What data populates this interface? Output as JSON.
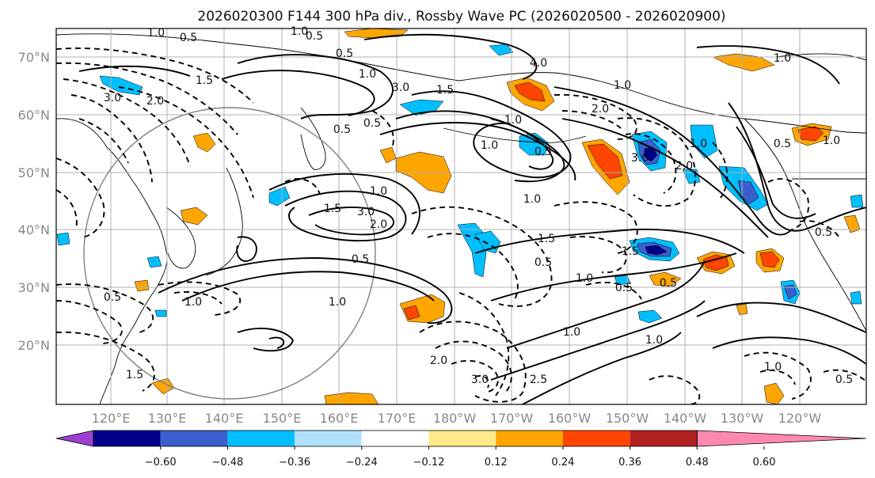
{
  "title": "2026020300 F144 300 hPa div., Rossby Wave PC (2026020500 - 2026020900)",
  "map": {
    "lat_labels": [
      "70°N",
      "60°N",
      "50°N",
      "40°N",
      "30°N",
      "20°N"
    ],
    "lon_labels": [
      "120°E",
      "130°E",
      "140°E",
      "150°E",
      "160°E",
      "170°E",
      "180°W",
      "170°W",
      "160°W",
      "150°W",
      "140°W",
      "130°W",
      "120°W"
    ],
    "coast_color": "#000000",
    "grid_color": "#b0b0b0"
  },
  "colorbar": {
    "colors": [
      "#9b3fd0",
      "#00008b",
      "#3a5fcd",
      "#00bfff",
      "#b0e2ff",
      "#ffffff",
      "#ffe98a",
      "#ffa500",
      "#ff4500",
      "#b22222",
      "#ff88b0"
    ],
    "tick_labels": [
      "−0.60",
      "−0.48",
      "−0.36",
      "−0.24",
      "−0.12",
      "0.12",
      "0.24",
      "0.36",
      "0.48",
      "0.60"
    ]
  },
  "contour_labels": [
    "1.0",
    "0.5",
    "1.0",
    "0.5",
    "0.5",
    "1.0",
    "1.5",
    "3.0",
    "2.0",
    "3.0",
    "1.0",
    "1.5",
    "0.5",
    "2.0",
    "1.0",
    "3.0",
    "4.0",
    "0.5",
    "1.0",
    "1.0",
    "2.0",
    "3.0",
    "0.5",
    "0.5",
    "1.0",
    "1.5",
    "2.0",
    "1.0",
    "0.5",
    "1.5",
    "0.5",
    "1.5",
    "1.0",
    "1.0",
    "0.5",
    "1.0",
    "1.0",
    "1.0",
    "0.5",
    "1.5",
    "2.0",
    "3.0",
    "2.5",
    "1.0",
    "0.5",
    "1.0",
    "0.5",
    "1.0",
    "0.5"
  ]
}
